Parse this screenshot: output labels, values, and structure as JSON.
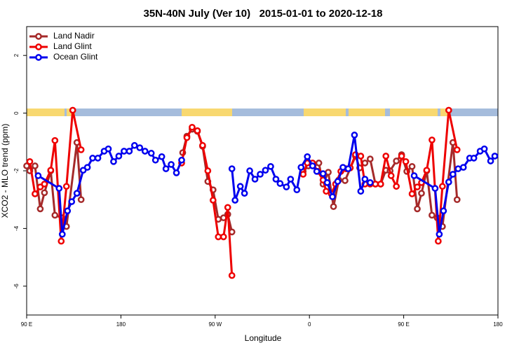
{
  "chart_data": {
    "type": "line",
    "title": "35N-40N July (Ver 10)   2015-01-01 to 2020-12-18",
    "x_label": "Longitude",
    "y_label": "XCO2 - MLO trend (ppm)",
    "xlim": [
      90,
      540
    ],
    "xticks": [
      {
        "value": 90,
        "label": "90 E"
      },
      {
        "value": 180,
        "label": "180"
      },
      {
        "value": 270,
        "label": "90 W"
      },
      {
        "value": 360,
        "label": "0"
      },
      {
        "value": 450,
        "label": "90 E"
      },
      {
        "value": 540,
        "label": "180"
      }
    ],
    "ylim": [
      -7,
      3
    ],
    "yticks": [
      -6,
      -4,
      -2,
      0,
      2
    ],
    "legend": "top-left",
    "series": [
      {
        "name": "Land Nadir",
        "color": "#a52a2a",
        "x": [
          90,
          93,
          98,
          103,
          107,
          113,
          117,
          124,
          128,
          138,
          142,
          null,
          239,
          243,
          248,
          253,
          258,
          263,
          268,
          273,
          278,
          282,
          286,
          null,
          354,
          359,
          364,
          369,
          373,
          378,
          383,
          388,
          394,
          404,
          408,
          413,
          418,
          423,
          428,
          433,
          437,
          443,
          448,
          453,
          458,
          463,
          467,
          472,
          477,
          482,
          487,
          497,
          501
        ],
        "values": [
          -1.83,
          -2.0,
          -1.83,
          -3.32,
          -2.76,
          -2.0,
          -3.54,
          -3.63,
          -3.93,
          -1.02,
          -3.0,
          null,
          -1.37,
          -0.8,
          -0.56,
          -0.63,
          -1.15,
          -2.37,
          -2.66,
          -3.68,
          -3.63,
          -3.51,
          -4.12,
          null,
          -2.02,
          -1.83,
          -1.78,
          -1.73,
          -2.46,
          -2.05,
          -3.24,
          -2.32,
          -2.34,
          -1.49,
          -1.9,
          -1.73,
          -1.59,
          -2.46,
          -2.46,
          -1.98,
          -2.0,
          -1.66,
          -1.44,
          -2.02,
          -1.85,
          -3.32,
          -2.78,
          -2.0,
          -3.54,
          -3.63,
          -3.93,
          -1.02,
          -3.0
        ]
      },
      {
        "name": "Land Glint",
        "color": "#ee0000",
        "x": [
          93,
          98,
          103,
          107,
          113,
          117,
          123,
          128,
          134,
          142,
          null,
          238,
          243,
          248,
          253,
          258,
          263,
          268,
          273,
          278,
          282,
          286,
          null,
          354,
          358,
          363,
          368,
          373,
          376,
          381,
          385,
          390,
          395,
          399,
          404,
          409,
          413,
          418,
          423,
          428,
          433,
          438,
          443,
          448,
          452,
          458,
          463,
          467,
          472,
          477,
          483,
          487,
          493,
          501
        ],
        "values": [
          -1.68,
          -2.8,
          -2.56,
          -2.46,
          -1.98,
          -0.95,
          -4.44,
          -2.54,
          0.1,
          -1.27,
          null,
          -1.73,
          -0.85,
          -0.49,
          -0.61,
          -1.12,
          -2.0,
          -3.02,
          -4.29,
          -4.29,
          -3.27,
          -5.63,
          null,
          -2.12,
          -1.73,
          -1.73,
          -2.02,
          -2.32,
          -2.71,
          -2.8,
          -2.46,
          -2.02,
          -1.93,
          -1.9,
          -1.44,
          -1.49,
          -2.46,
          -2.46,
          -2.46,
          -2.46,
          -1.49,
          -2.17,
          -2.54,
          -1.49,
          -1.68,
          -2.8,
          -2.56,
          -2.41,
          -1.98,
          -0.93,
          -4.44,
          -2.54,
          0.1,
          -1.27
        ]
      },
      {
        "name": "Ocean Glint",
        "color": "#0000ee",
        "x": [
          101,
          121,
          124,
          129,
          133,
          138,
          144,
          148,
          153,
          158,
          164,
          168,
          173,
          178,
          183,
          188,
          193,
          198,
          203,
          209,
          213,
          219,
          223,
          228,
          233,
          238,
          null,
          286,
          289,
          294,
          298,
          303,
          308,
          313,
          318,
          323,
          328,
          332,
          338,
          342,
          348,
          352,
          358,
          363,
          367,
          373,
          377,
          382,
          387,
          392,
          397,
          403,
          409,
          413,
          418,
          null,
          460,
          480,
          484,
          488,
          493,
          497,
          502,
          507,
          513,
          517,
          523,
          527,
          533,
          537
        ],
        "values": [
          -2.17,
          -2.61,
          -4.2,
          -3.39,
          -3.07,
          -2.78,
          -1.98,
          -1.88,
          -1.56,
          -1.56,
          -1.32,
          -1.24,
          -1.68,
          -1.49,
          -1.32,
          -1.32,
          -1.12,
          -1.2,
          -1.32,
          -1.39,
          -1.63,
          -1.51,
          -1.93,
          -1.78,
          -2.07,
          -1.63,
          null,
          -1.93,
          -3.02,
          -2.54,
          -2.78,
          -2.0,
          -2.29,
          -2.12,
          -1.98,
          -1.85,
          -2.29,
          -2.44,
          -2.56,
          -2.29,
          -2.66,
          -1.88,
          -1.51,
          -1.83,
          -2.02,
          -2.1,
          -2.41,
          -2.9,
          -2.37,
          -1.88,
          -1.93,
          -0.76,
          -2.71,
          -2.29,
          -2.41,
          null,
          -2.17,
          -2.61,
          -4.2,
          -3.39,
          -2.39,
          -2.12,
          -1.93,
          -1.88,
          -1.56,
          -1.56,
          -1.32,
          -1.24,
          -1.66,
          -1.49
        ]
      }
    ]
  }
}
